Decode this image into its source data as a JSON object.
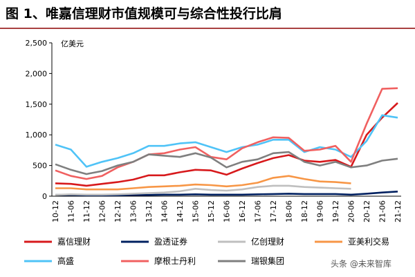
{
  "chart_data": {
    "type": "line",
    "title": "图 1、唯嘉信理财市值规模可与综合性投行比肩",
    "y_label": "亿美元",
    "watermark": "头条 @未来智库",
    "categories": [
      "10-12",
      "11-06",
      "11-12",
      "12-06",
      "12-12",
      "13-06",
      "13-12",
      "14-06",
      "14-12",
      "15-06",
      "15-12",
      "16-06",
      "16-12",
      "17-06",
      "17-12",
      "18-06",
      "18-12",
      "19-06",
      "19-12",
      "20-06",
      "20-12",
      "21-06",
      "21-12"
    ],
    "ylim": [
      0,
      2500
    ],
    "yticks": [
      0,
      500,
      {
        "value": 1000,
        "label": "1,000"
      },
      {
        "value": 1500,
        "label": "1,500"
      },
      {
        "value": 2000,
        "label": "2,000"
      },
      {
        "value": 2500,
        "label": "2,500"
      }
    ],
    "grid": false,
    "series": [
      {
        "name": "嘉信理财",
        "color": "#d7191c",
        "values": [
          210,
          200,
          170,
          200,
          230,
          270,
          340,
          340,
          390,
          430,
          420,
          350,
          450,
          540,
          620,
          670,
          580,
          560,
          590,
          480,
          1000,
          1280,
          1520
        ]
      },
      {
        "name": "盈透证券",
        "color": "#002060",
        "values": [
          20,
          20,
          15,
          15,
          15,
          20,
          20,
          25,
          25,
          30,
          25,
          25,
          25,
          30,
          35,
          40,
          35,
          35,
          35,
          25,
          40,
          60,
          75
        ]
      },
      {
        "name": "亿创理财",
        "color": "#bfbfbf",
        "values": [
          20,
          30,
          25,
          25,
          30,
          40,
          50,
          60,
          80,
          120,
          100,
          90,
          110,
          150,
          170,
          170,
          150,
          140,
          130,
          120,
          null,
          null,
          null
        ]
      },
      {
        "name": "亚美利交易",
        "color": "#f79646",
        "values": [
          130,
          130,
          110,
          110,
          110,
          130,
          150,
          160,
          170,
          190,
          180,
          160,
          180,
          220,
          300,
          330,
          280,
          240,
          230,
          210,
          null,
          null,
          null
        ]
      },
      {
        "name": "高盛",
        "color": "#4fc3f7",
        "values": [
          840,
          760,
          480,
          560,
          620,
          700,
          820,
          820,
          860,
          880,
          800,
          720,
          800,
          840,
          920,
          920,
          720,
          800,
          760,
          640,
          900,
          1320,
          1280
        ]
      },
      {
        "name": "摩根士丹利",
        "color": "#f06060",
        "values": [
          420,
          330,
          280,
          330,
          470,
          560,
          680,
          700,
          760,
          800,
          640,
          600,
          780,
          880,
          960,
          950,
          740,
          760,
          820,
          560,
          1180,
          1750,
          1760
        ]
      },
      {
        "name": "瑞银集团",
        "color": "#7f7f7f",
        "values": [
          520,
          430,
          360,
          410,
          500,
          560,
          680,
          660,
          640,
          700,
          630,
          470,
          560,
          600,
          700,
          720,
          560,
          500,
          560,
          470,
          500,
          580,
          610
        ]
      }
    ]
  }
}
